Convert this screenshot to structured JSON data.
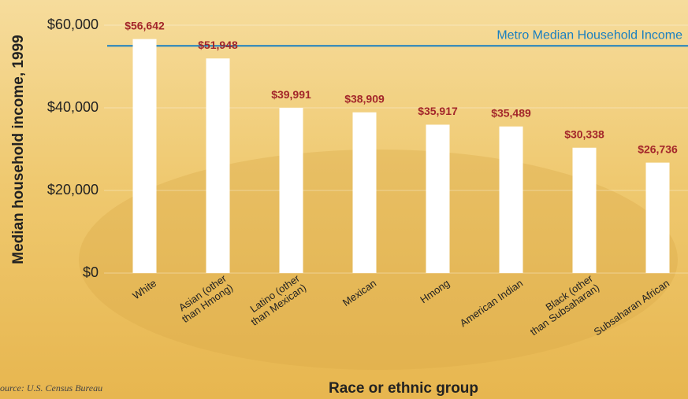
{
  "chart_data": {
    "type": "bar",
    "y_label": "Median household income, 1999",
    "x_label": "Race or ethnic group",
    "source": "Source: U.S. Census Bureau",
    "categories": [
      "White",
      "Asian (other\nthan Hmong)",
      "Latino (other\nthan Mexican)",
      "Mexican",
      "Hmong",
      "American Indian",
      "Black (other\nthan Subsaharan)",
      "Subsaharan African"
    ],
    "values": [
      56642,
      51948,
      39991,
      38909,
      35917,
      35489,
      30338,
      26736
    ],
    "value_labels": [
      "$56,642",
      "$51,948",
      "$39,991",
      "$38,909",
      "$35,917",
      "$35,489",
      "$30,338",
      "$26,736"
    ],
    "color": "#ffffff",
    "value_label_color": "#a3262a",
    "reference_line": {
      "label": "Metro Median Household Income",
      "value": 55000,
      "color": "#1a7fc0"
    },
    "ylim": [
      0,
      60000
    ],
    "yticks": [
      {
        "value": 0,
        "label": "$0"
      },
      {
        "value": 20000,
        "label": "$20,000"
      },
      {
        "value": 40000,
        "label": "$40,000"
      },
      {
        "value": 60000,
        "label": "$60,000"
      }
    ],
    "grid": true
  }
}
